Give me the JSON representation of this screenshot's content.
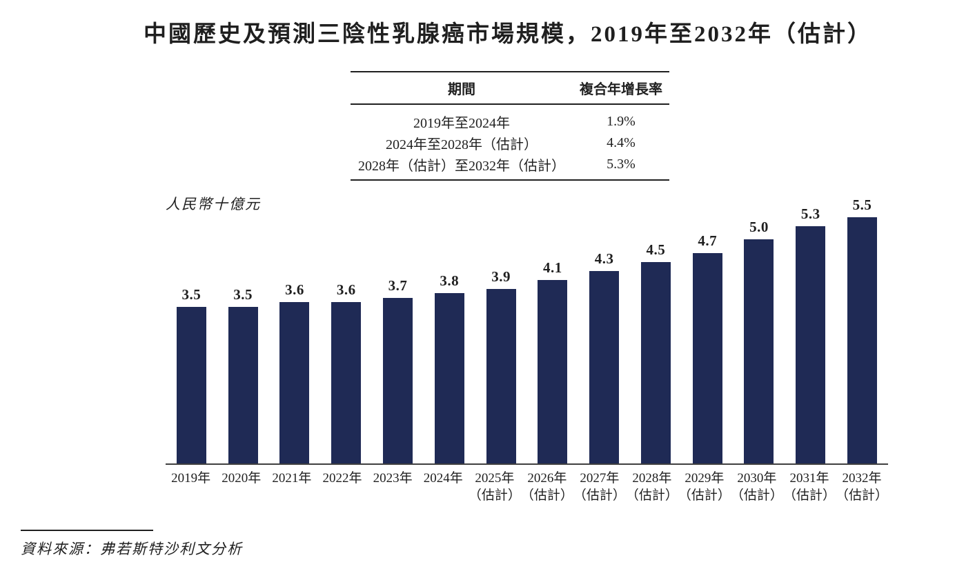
{
  "title": "中國歷史及預測三陰性乳腺癌市場規模，2019年至2032年（估計）",
  "cagr_table": {
    "headers": [
      "期間",
      "複合年增長率"
    ],
    "rows": [
      {
        "period": "2019年至2024年",
        "cagr": "1.9%"
      },
      {
        "period": "2024年至2028年（估計）",
        "cagr": "4.4%"
      },
      {
        "period": "2028年（估計）至2032年（估計）",
        "cagr": "5.3%"
      }
    ]
  },
  "chart_data": {
    "type": "bar",
    "title": "中國歷史及預測三陰性乳腺癌市場規模，2019年至2032年（估計）",
    "unit_label": "人民幣十億元",
    "xlabel": "",
    "ylabel": "人民幣十億元",
    "ylim": [
      0,
      6
    ],
    "grid": false,
    "legend": "none",
    "value_labels": true,
    "bar_color": "#1f2a55",
    "categories": [
      {
        "year": "2019年",
        "note": ""
      },
      {
        "year": "2020年",
        "note": ""
      },
      {
        "year": "2021年",
        "note": ""
      },
      {
        "year": "2022年",
        "note": ""
      },
      {
        "year": "2023年",
        "note": ""
      },
      {
        "year": "2024年",
        "note": ""
      },
      {
        "year": "2025年",
        "note": "（估計）"
      },
      {
        "year": "2026年",
        "note": "（估計）"
      },
      {
        "year": "2027年",
        "note": "（估計）"
      },
      {
        "year": "2028年",
        "note": "（估計）"
      },
      {
        "year": "2029年",
        "note": "（估計）"
      },
      {
        "year": "2030年",
        "note": "（估計）"
      },
      {
        "year": "2031年",
        "note": "（估計）"
      },
      {
        "year": "2032年",
        "note": "（估計）"
      }
    ],
    "values": [
      3.5,
      3.5,
      3.6,
      3.6,
      3.7,
      3.8,
      3.9,
      4.1,
      4.3,
      4.5,
      4.7,
      5.0,
      5.3,
      5.5
    ]
  },
  "source": {
    "text": "資料來源：弗若斯特沙利文分析"
  }
}
